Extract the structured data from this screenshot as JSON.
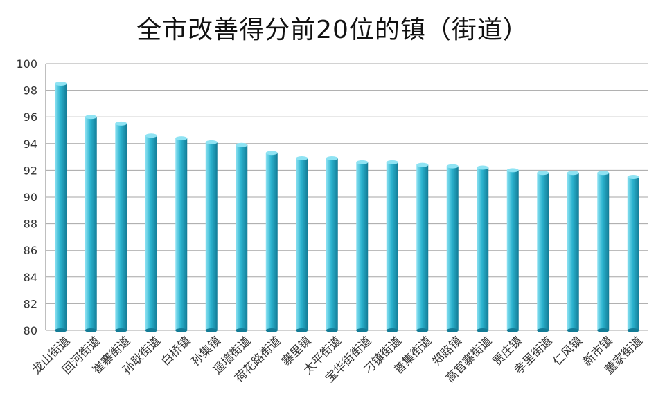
{
  "chart_data": {
    "type": "bar",
    "title": "全市改善得分前20位的镇（街道）",
    "categories": [
      "龙山街道",
      "回河街道",
      "崔寨街道",
      "孙耿街道",
      "白桥镇",
      "孙集镇",
      "遥墙街道",
      "荷花路街道",
      "寨里镇",
      "太平街道",
      "宝华街街道",
      "刁镇街道",
      "普集街道",
      "郑路镇",
      "高官寨街道",
      "贾庄镇",
      "孝里街道",
      "仁风镇",
      "新市镇",
      "董家街道"
    ],
    "values": [
      98.5,
      96.0,
      95.5,
      94.6,
      94.4,
      94.1,
      93.9,
      93.3,
      92.9,
      92.9,
      92.6,
      92.6,
      92.4,
      92.3,
      92.2,
      92.0,
      91.8,
      91.8,
      91.8,
      91.5
    ],
    "ylim": [
      80,
      100
    ],
    "yticks": [
      80,
      82,
      84,
      86,
      88,
      90,
      92,
      94,
      96,
      98,
      100
    ],
    "grid": true,
    "colors": {
      "bar_light": "#8fe3f3",
      "bar_mid": "#2bb3cf",
      "bar_dark": "#137c96",
      "grid": "#a6a6a6",
      "axis": "#7f7f7f"
    }
  }
}
